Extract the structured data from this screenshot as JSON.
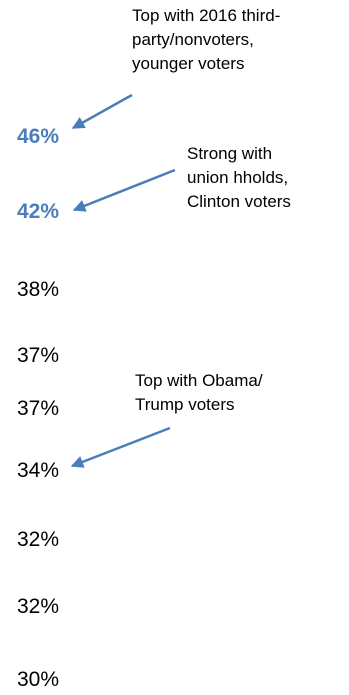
{
  "colors": {
    "highlight": "#4a7ebb",
    "text": "#000000",
    "arrow": "#4a7ebb"
  },
  "chart_data": {
    "type": "table",
    "values": [
      "46%",
      "42%",
      "38%",
      "37%",
      "37%",
      "34%",
      "32%",
      "32%",
      "30%"
    ],
    "numeric_values": [
      46,
      42,
      38,
      37,
      37,
      34,
      32,
      32,
      30
    ],
    "highlighted": [
      true,
      true,
      false,
      false,
      false,
      false,
      false,
      false,
      false
    ],
    "annotations": [
      {
        "lines": [
          "Top with 2016 third-",
          "party/nonvoters,",
          "younger voters"
        ],
        "points_to": 0
      },
      {
        "lines": [
          "Strong with",
          "union hholds,",
          "Clinton voters"
        ],
        "points_to": 1
      },
      {
        "lines": [
          "Top with Obama/",
          "Trump voters"
        ],
        "points_to": 5
      }
    ]
  }
}
